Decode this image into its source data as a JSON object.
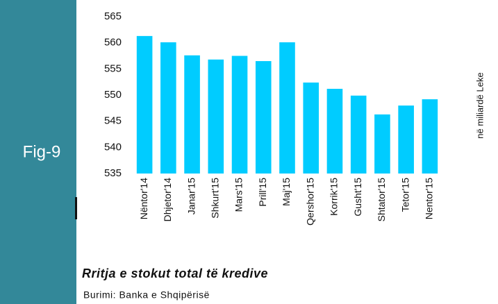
{
  "chart_data": {
    "type": "bar",
    "figure_label": "Fig-9",
    "title": "Rritja e stokut total të kredive",
    "source": "Burimi: Banka e Shqipërisë",
    "y_label": "në miliardë Leke",
    "categories": [
      "Nëntor'14",
      "Dhjetor'14",
      "Janar'15",
      "Shkurt'15",
      "Mars'15",
      "Prill'15",
      "Maj'15",
      "Qershor'15",
      "Korrik'15",
      "Gusht'15",
      "Shtator'15",
      "Tetor'15",
      "Nentor'15"
    ],
    "values": [
      561.3,
      560.1,
      557.6,
      556.8,
      557.5,
      556.5,
      560.1,
      552.4,
      551.2,
      549.9,
      546.3,
      548.0,
      549.2
    ],
    "color": "#00ccff",
    "ylim": [
      535,
      565
    ],
    "yticks": [
      535,
      540,
      545,
      550,
      555,
      560,
      565
    ],
    "grid": false
  }
}
